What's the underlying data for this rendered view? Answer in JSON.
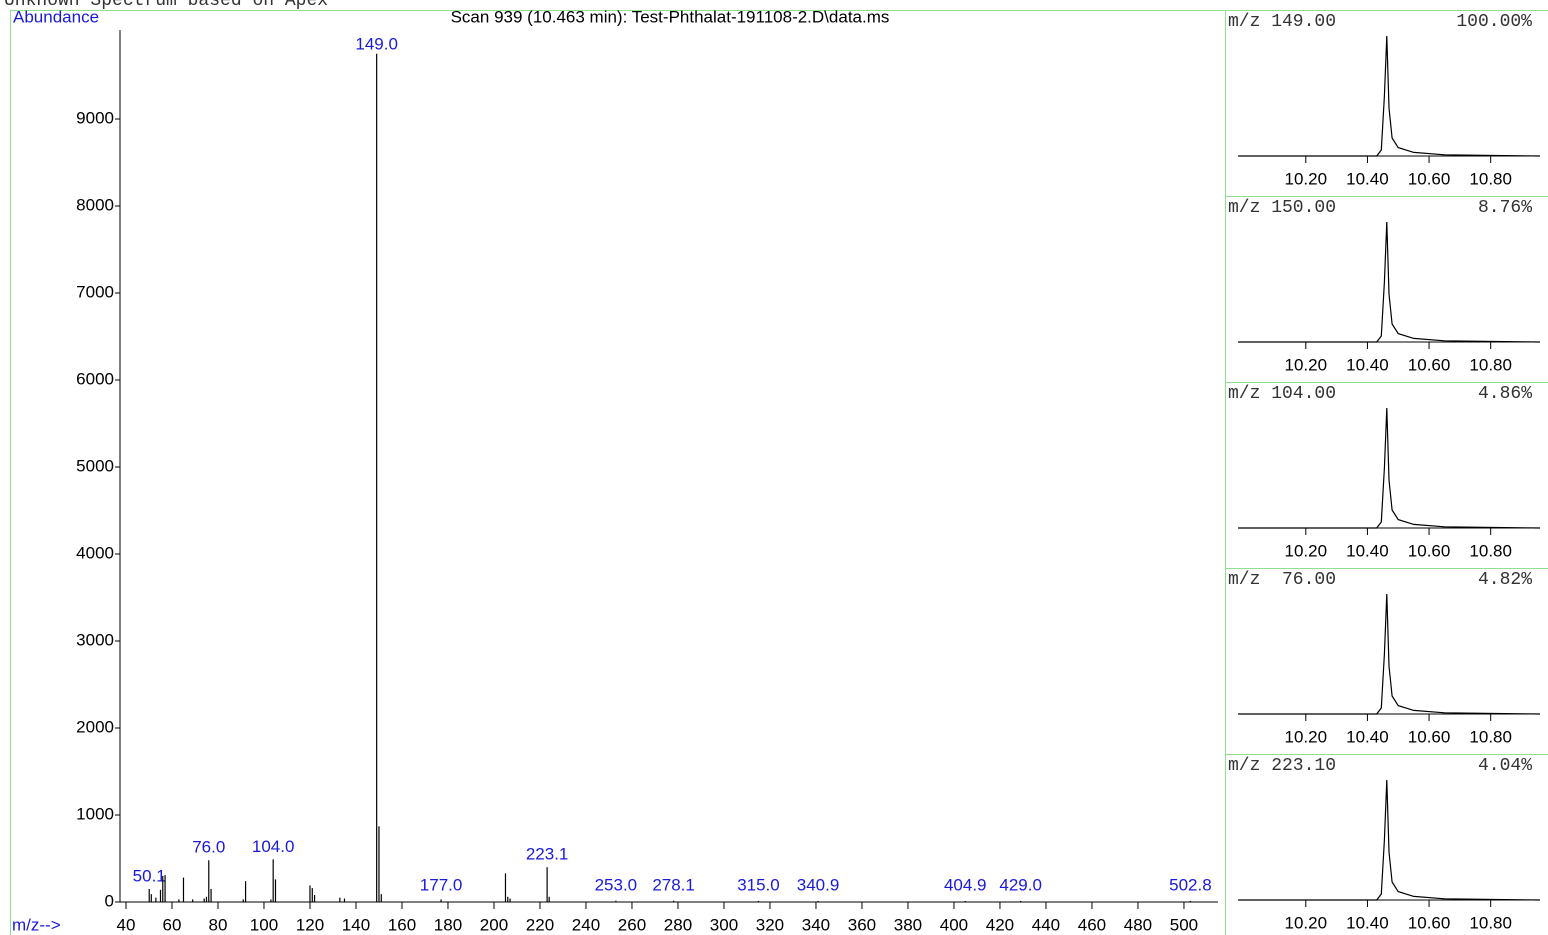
{
  "header": "Unknown Spectrum based on Apex",
  "chart_data": [
    {
      "type": "bar",
      "title": "Scan 939 (10.463 min): Test-Phthalat-191108-2.D\\data.ms",
      "y_label": "Abundance",
      "x_label": "m/z-->",
      "color": "#000000",
      "label_color": "#1a1adc",
      "x": [
        50.1,
        51,
        53,
        55,
        56,
        57,
        63,
        65,
        69,
        74,
        75,
        76,
        77,
        91,
        92,
        103,
        104,
        105,
        120,
        121,
        122,
        133,
        135,
        149,
        150,
        151,
        177,
        205,
        206,
        207,
        223.1,
        224,
        253,
        278.1,
        315,
        340.9,
        404.9,
        429,
        502.8
      ],
      "values": [
        150,
        90,
        50,
        140,
        300,
        310,
        30,
        280,
        30,
        40,
        60,
        480,
        150,
        30,
        240,
        30,
        490,
        260,
        190,
        160,
        80,
        50,
        40,
        9750,
        870,
        90,
        30,
        330,
        60,
        40,
        400,
        60,
        15,
        15,
        12,
        12,
        12,
        12,
        12
      ],
      "x_labels": [
        "50.1",
        null,
        null,
        null,
        null,
        null,
        null,
        null,
        null,
        null,
        null,
        "76.0",
        null,
        null,
        null,
        null,
        "104.0",
        null,
        null,
        null,
        null,
        null,
        null,
        "149.0",
        null,
        null,
        "177.0",
        null,
        null,
        null,
        "223.1",
        null,
        "253.0",
        "278.1",
        "315.0",
        "340.9",
        "404.9",
        "429.0",
        "502.8"
      ],
      "xlim": [
        37.4,
        514.8
      ],
      "ylim": [
        0,
        10000
      ],
      "xticks": [
        40,
        60,
        80,
        100,
        120,
        140,
        160,
        180,
        200,
        220,
        240,
        260,
        280,
        300,
        320,
        340,
        360,
        380,
        400,
        420,
        440,
        460,
        480,
        500
      ],
      "yticks": [
        0,
        1000,
        2000,
        3000,
        4000,
        5000,
        6000,
        7000,
        8000,
        9000
      ]
    },
    {
      "type": "line",
      "title": "m/z 149.00",
      "percent": "100.00%",
      "color": "#000000",
      "x": [
        9.98,
        10.43,
        10.445,
        10.455,
        10.463,
        10.47,
        10.48,
        10.5,
        10.55,
        10.65,
        10.96
      ],
      "values": [
        0,
        0,
        5,
        50,
        100,
        40,
        15,
        7,
        3,
        1,
        0
      ],
      "xlim": [
        9.98,
        10.96
      ],
      "ylim": [
        0,
        105
      ],
      "xticks": [
        {
          "value": 10.2,
          "label": "10.20"
        },
        {
          "value": 10.4,
          "label": "10.40"
        },
        {
          "value": 10.6,
          "label": "10.60"
        },
        {
          "value": 10.8,
          "label": "10.80"
        }
      ]
    },
    {
      "type": "line",
      "title": "m/z 150.00",
      "percent": "8.76%",
      "color": "#000000",
      "x": [
        9.98,
        10.43,
        10.445,
        10.455,
        10.463,
        10.47,
        10.48,
        10.5,
        10.55,
        10.65,
        10.96
      ],
      "values": [
        0,
        0,
        5,
        50,
        100,
        40,
        15,
        7,
        3,
        1,
        0
      ],
      "xlim": [
        9.98,
        10.96
      ],
      "ylim": [
        0,
        105
      ],
      "xticks": [
        {
          "value": 10.2,
          "label": "10.20"
        },
        {
          "value": 10.4,
          "label": "10.40"
        },
        {
          "value": 10.6,
          "label": "10.60"
        },
        {
          "value": 10.8,
          "label": "10.80"
        }
      ]
    },
    {
      "type": "line",
      "title": "m/z 104.00",
      "percent": "4.86%",
      "color": "#000000",
      "x": [
        9.98,
        10.43,
        10.445,
        10.455,
        10.463,
        10.47,
        10.48,
        10.5,
        10.55,
        10.65,
        10.96
      ],
      "values": [
        0,
        0,
        5,
        50,
        100,
        40,
        15,
        7,
        3,
        1,
        0
      ],
      "xlim": [
        9.98,
        10.96
      ],
      "ylim": [
        0,
        105
      ],
      "xticks": [
        {
          "value": 10.2,
          "label": "10.20"
        },
        {
          "value": 10.4,
          "label": "10.40"
        },
        {
          "value": 10.6,
          "label": "10.60"
        },
        {
          "value": 10.8,
          "label": "10.80"
        }
      ]
    },
    {
      "type": "line",
      "title": "m/z  76.00",
      "percent": "4.82%",
      "color": "#000000",
      "x": [
        9.98,
        10.43,
        10.445,
        10.455,
        10.463,
        10.47,
        10.48,
        10.5,
        10.55,
        10.65,
        10.96
      ],
      "values": [
        0,
        0,
        5,
        50,
        100,
        40,
        15,
        7,
        3,
        1,
        0
      ],
      "xlim": [
        9.98,
        10.96
      ],
      "ylim": [
        0,
        105
      ],
      "xticks": [
        {
          "value": 10.2,
          "label": "10.20"
        },
        {
          "value": 10.4,
          "label": "10.40"
        },
        {
          "value": 10.6,
          "label": "10.60"
        },
        {
          "value": 10.8,
          "label": "10.80"
        }
      ]
    },
    {
      "type": "line",
      "title": "m/z 223.10",
      "percent": "4.04%",
      "color": "#000000",
      "x": [
        9.98,
        10.43,
        10.445,
        10.455,
        10.463,
        10.47,
        10.48,
        10.5,
        10.55,
        10.65,
        10.96
      ],
      "values": [
        0,
        0,
        5,
        50,
        100,
        40,
        15,
        7,
        3,
        1,
        0
      ],
      "xlim": [
        9.98,
        10.96
      ],
      "ylim": [
        0,
        105
      ],
      "xticks": [
        {
          "value": 10.2,
          "label": "10.20"
        },
        {
          "value": 10.4,
          "label": "10.40"
        },
        {
          "value": 10.6,
          "label": "10.60"
        },
        {
          "value": 10.8,
          "label": "10.80"
        }
      ]
    }
  ]
}
